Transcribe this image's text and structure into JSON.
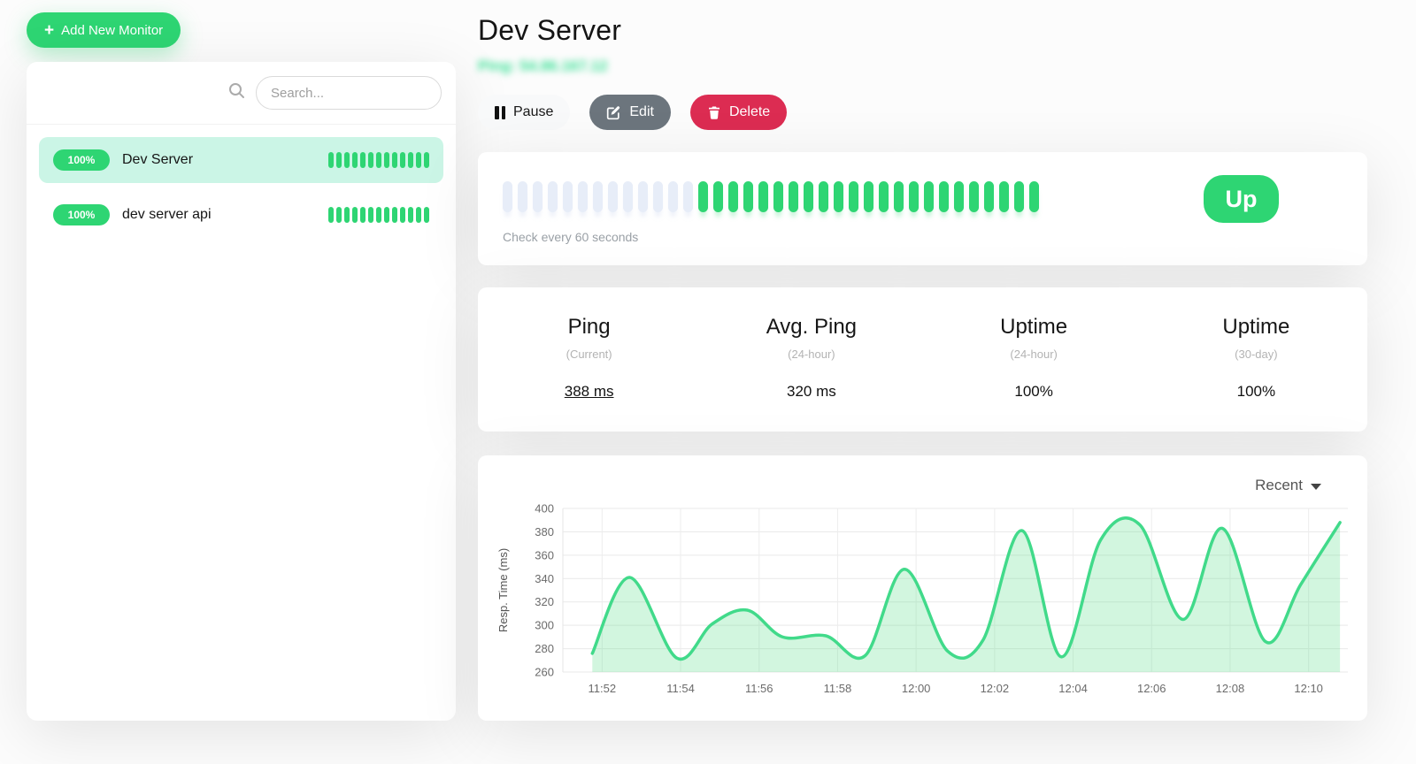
{
  "colors": {
    "accent_green": "#2ed573",
    "chart_line": "#41da8a",
    "chart_fill": "rgba(92,221,139,0.28)",
    "danger_red": "#dc2c52",
    "secondary_gray": "#6c757d",
    "beat_empty": "#e7edf8",
    "selected_row_bg": "#cbf5e6"
  },
  "sidebar": {
    "add_button_label": "Add New Monitor",
    "search_placeholder": "Search...",
    "monitors": [
      {
        "name": "Dev Server",
        "uptime_badge": "100%",
        "selected": true,
        "beats_up": 13
      },
      {
        "name": "dev server api",
        "uptime_badge": "100%",
        "selected": false,
        "beats_up": 13
      }
    ]
  },
  "header": {
    "title": "Dev Server",
    "ping_line_redacted": "Ping: 54.86.167.12",
    "pause_label": "Pause",
    "edit_label": "Edit",
    "delete_label": "Delete"
  },
  "status_card": {
    "beats_empty": 13,
    "beats_up": 23,
    "check_interval_text": "Check every 60 seconds",
    "status_label": "Up"
  },
  "stats": [
    {
      "title": "Ping",
      "subtitle": "(Current)",
      "value": "388 ms",
      "underline": true
    },
    {
      "title": "Avg. Ping",
      "subtitle": "(24-hour)",
      "value": "320 ms",
      "underline": false
    },
    {
      "title": "Uptime",
      "subtitle": "(24-hour)",
      "value": "100%",
      "underline": false
    },
    {
      "title": "Uptime",
      "subtitle": "(30-day)",
      "value": "100%",
      "underline": false
    }
  ],
  "chart_card": {
    "period_selector": "Recent"
  },
  "chart_data": {
    "type": "area",
    "title": "",
    "xlabel": "",
    "ylabel": "Resp. Time (ms)",
    "ylim": [
      260,
      400
    ],
    "yticks": [
      260,
      280,
      300,
      320,
      340,
      360,
      380,
      400
    ],
    "x_axis_note": "points are [minutes after 11:50, response ms], one check per 60 s",
    "xlim_minutes": [
      1.0,
      21.0
    ],
    "xticks_minutes": [
      2,
      4,
      6,
      8,
      10,
      12,
      14,
      16,
      18,
      20
    ],
    "xtick_labels": [
      "11:52",
      "11:54",
      "11:56",
      "11:58",
      "12:00",
      "12:02",
      "12:04",
      "12:06",
      "12:08",
      "12:10"
    ],
    "grid": true,
    "legend": "none",
    "series": [
      {
        "name": "Resp. Time (ms)",
        "points": [
          [
            1.75,
            276
          ],
          [
            2.7,
            341
          ],
          [
            3.9,
            272
          ],
          [
            4.8,
            301
          ],
          [
            5.7,
            313
          ],
          [
            6.6,
            290
          ],
          [
            7.7,
            291
          ],
          [
            8.7,
            274
          ],
          [
            9.7,
            348
          ],
          [
            10.8,
            278
          ],
          [
            11.7,
            287
          ],
          [
            12.7,
            381
          ],
          [
            13.7,
            273
          ],
          [
            14.7,
            373
          ],
          [
            15.7,
            386
          ],
          [
            16.8,
            305
          ],
          [
            17.8,
            383
          ],
          [
            18.9,
            286
          ],
          [
            19.8,
            335
          ],
          [
            20.8,
            388
          ]
        ]
      }
    ]
  }
}
